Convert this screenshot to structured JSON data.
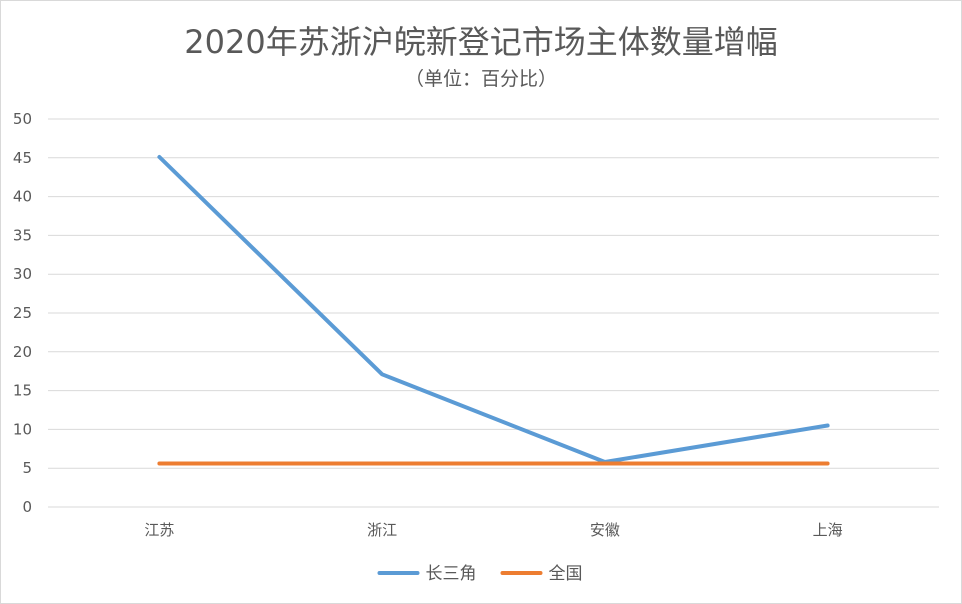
{
  "chart_data": {
    "type": "line",
    "title": "2020年苏浙沪皖新登记市场主体数量增幅",
    "subtitle": "（单位：百分比）",
    "xlabel": "",
    "ylabel": "",
    "categories": [
      "江苏",
      "浙江",
      "安徽",
      "上海"
    ],
    "series": [
      {
        "name": "长三角",
        "values": [
          45.1,
          17.1,
          5.8,
          10.5
        ],
        "color": "#5b9bd5"
      },
      {
        "name": "全国",
        "values": [
          5.6,
          5.6,
          5.6,
          5.6
        ],
        "color": "#ed7d31"
      }
    ],
    "ylim": [
      0,
      50
    ],
    "yticks": [
      0,
      5,
      10,
      15,
      20,
      25,
      30,
      35,
      40,
      45,
      50
    ],
    "grid": true,
    "legend": "bottom-center"
  }
}
